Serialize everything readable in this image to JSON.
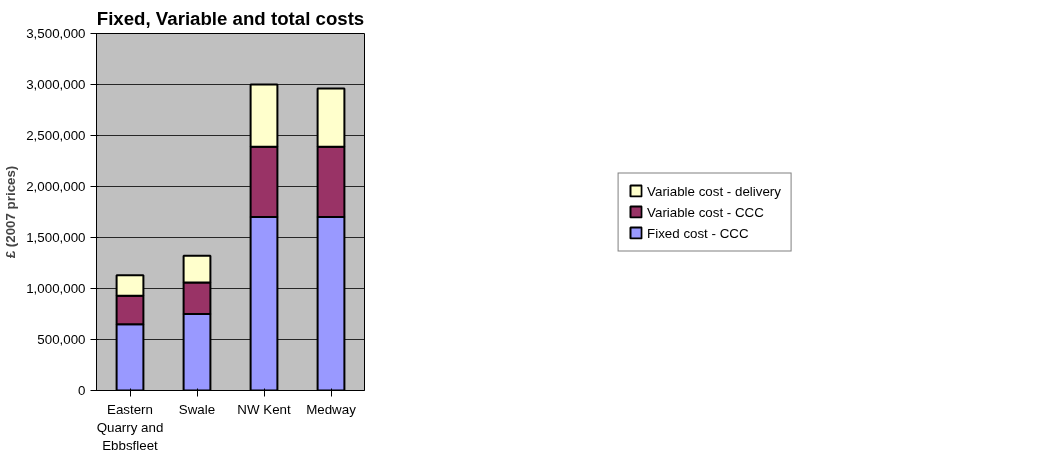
{
  "chart_data": {
    "type": "bar",
    "stacked": true,
    "title": "Fixed, Variable and total costs",
    "ylabel": "£ (2007 prices)",
    "categories": [
      "Eastern Quarry and Ebbsfleet",
      "Swale",
      "NW Kent",
      "Medway"
    ],
    "series": [
      {
        "name": "Fixed cost - CCC",
        "color": "#9999ff",
        "values": [
          650000,
          750000,
          1700000,
          1700000
        ]
      },
      {
        "name": "Variable cost - CCC",
        "color": "#993366",
        "values": [
          280000,
          310000,
          690000,
          690000
        ]
      },
      {
        "name": "Variable cost - delivery",
        "color": "#ffffcc",
        "values": [
          200000,
          260000,
          610000,
          570000
        ]
      }
    ],
    "ylim": [
      0,
      3500000
    ],
    "yticks": [
      0,
      {
        "value": 500000,
        "label": "500,000"
      },
      {
        "value": 1000000,
        "label": "1,000,000"
      },
      {
        "value": 1500000,
        "label": "1,500,000"
      },
      {
        "value": 2000000,
        "label": "2,000,000"
      },
      {
        "value": 2500000,
        "label": "2,500,000"
      },
      {
        "value": 3000000,
        "label": "3,000,000"
      },
      {
        "value": 3500000,
        "label": "3,500,000"
      }
    ],
    "grid": "y",
    "legend": "right"
  }
}
